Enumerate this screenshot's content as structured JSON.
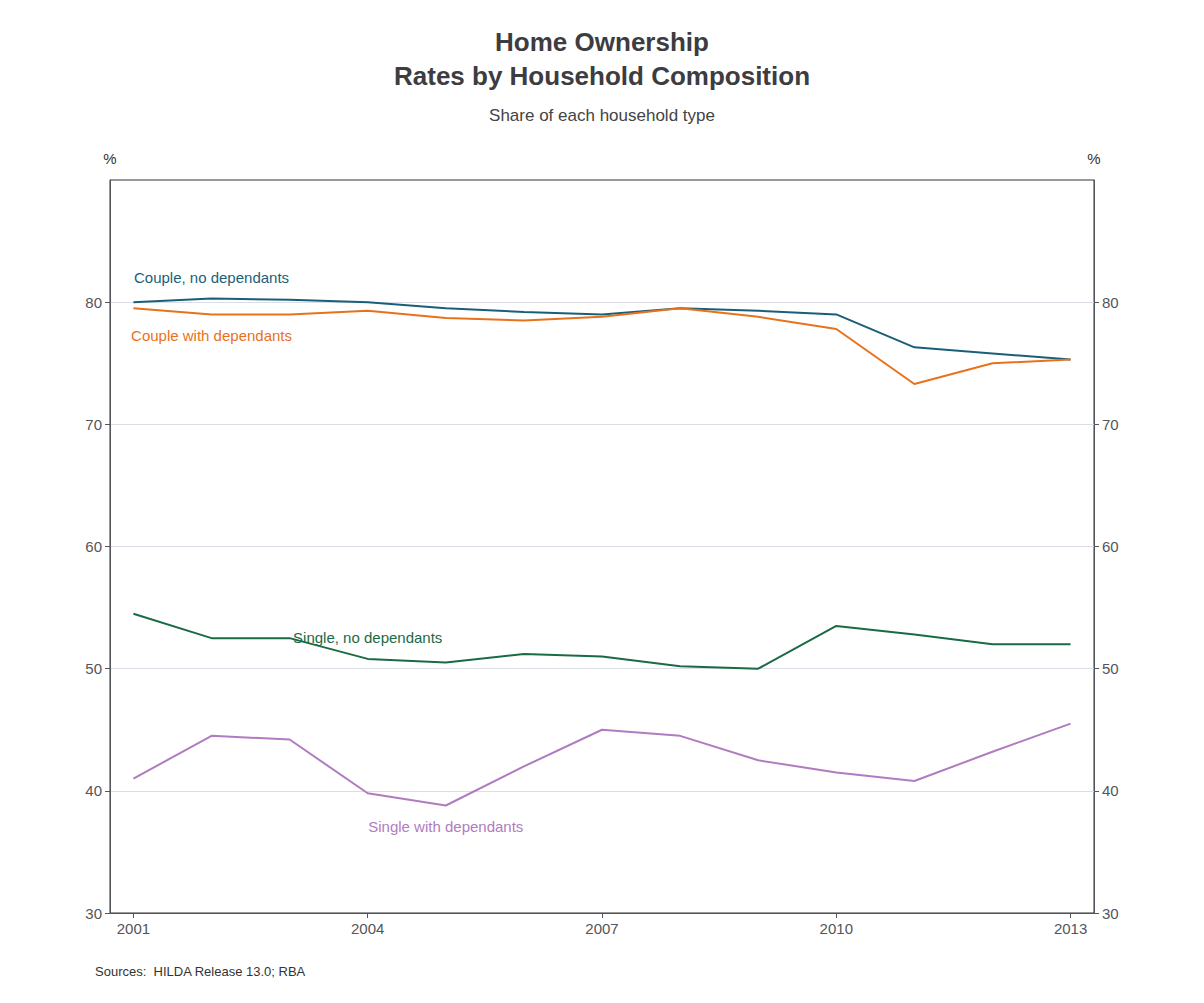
{
  "chart_data": {
    "type": "line",
    "title": "Home Ownership\nRates by Household Composition",
    "subtitle": "Share of each household type",
    "source": "Sources:  HILDA Release 13.0; RBA",
    "x": [
      2001,
      2002,
      2003,
      2004,
      2005,
      2006,
      2007,
      2008,
      2009,
      2010,
      2011,
      2012,
      2013
    ],
    "series": [
      {
        "name": "Couple, no dependants",
        "color": "#1a5f7a",
        "values": [
          80.0,
          80.3,
          80.2,
          80.0,
          79.5,
          79.2,
          79.0,
          79.5,
          79.3,
          79.0,
          76.3,
          75.8,
          75.3
        ]
      },
      {
        "name": "Couple with dependants",
        "color": "#e8721c",
        "values": [
          79.5,
          79.0,
          79.0,
          79.3,
          78.7,
          78.5,
          78.8,
          79.5,
          78.8,
          77.8,
          73.3,
          75.0,
          75.3
        ]
      },
      {
        "name": "Single, no dependants",
        "color": "#1a6b45",
        "values": [
          54.5,
          52.5,
          52.5,
          50.8,
          50.5,
          51.2,
          51.0,
          50.2,
          50.0,
          53.5,
          52.8,
          52.0,
          52.0
        ]
      },
      {
        "name": "Single with dependants",
        "color": "#b07cc0",
        "values": [
          41.0,
          44.5,
          44.2,
          39.8,
          38.8,
          42.0,
          45.0,
          44.5,
          42.5,
          41.5,
          40.8,
          43.2,
          45.5
        ]
      }
    ],
    "xlim": [
      2000.7,
      2013.3
    ],
    "xticks": [
      2001,
      2004,
      2007,
      2010,
      2013
    ],
    "ylim": [
      30,
      90
    ],
    "yticks": [
      30,
      40,
      50,
      60,
      70,
      80
    ],
    "ylabel": "%",
    "y2lim": [
      30,
      90
    ],
    "y2ticks": [
      30,
      40,
      50,
      60,
      70,
      80
    ],
    "y2label": "%",
    "grid": true
  }
}
